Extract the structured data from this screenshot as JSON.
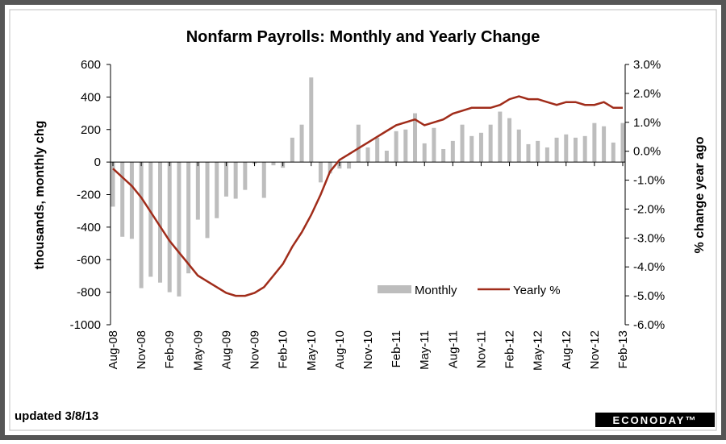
{
  "chart_data": {
    "type": "bar_line",
    "title": "Nonfarm Payrolls: Monthly and Yearly Change",
    "y_label": "thousands, monthly chg",
    "y2_label": "% change year ago",
    "note": "updated 3/8/13",
    "source": "ECONODAY™",
    "categories": [
      "Aug-08",
      null,
      null,
      "Nov-08",
      null,
      null,
      "Feb-09",
      null,
      null,
      "May-09",
      null,
      null,
      "Aug-09",
      null,
      null,
      "Nov-09",
      null,
      null,
      "Feb-10",
      null,
      null,
      "May-10",
      null,
      null,
      "Aug-10",
      null,
      null,
      "Nov-10",
      null,
      null,
      "Feb-11",
      null,
      null,
      "May-11",
      null,
      null,
      "Aug-11",
      null,
      null,
      "Nov-11",
      null,
      null,
      "Feb-12",
      null,
      null,
      "May-12",
      null,
      null,
      "Aug-12",
      null,
      null,
      "Nov-12",
      null,
      null,
      "Feb-13"
    ],
    "series": [
      {
        "name": "Monthly",
        "color": "#bdbdbd",
        "kind": "bar",
        "values": [
          -274,
          -459,
          -472,
          -775,
          -705,
          -741,
          -800,
          -826,
          -684,
          -354,
          -467,
          -345,
          -212,
          -225,
          -171,
          -10,
          -220,
          -20,
          -35,
          150,
          230,
          520,
          -125,
          -70,
          -40,
          -40,
          230,
          90,
          150,
          70,
          190,
          200,
          300,
          115,
          210,
          80,
          130,
          230,
          160,
          180,
          230,
          310,
          270,
          200,
          110,
          130,
          90,
          150,
          170,
          150,
          160,
          240,
          220,
          120,
          240
        ]
      },
      {
        "name": "Yearly %",
        "color": "#a02c1a",
        "kind": "line",
        "axis": "y2",
        "values": [
          -0.6,
          -0.9,
          -1.2,
          -1.6,
          -2.1,
          -2.6,
          -3.1,
          -3.5,
          -3.9,
          -4.3,
          -4.5,
          -4.7,
          -4.9,
          -5.0,
          -5.0,
          -4.9,
          -4.7,
          -4.3,
          -3.9,
          -3.3,
          -2.8,
          -2.2,
          -1.5,
          -0.7,
          -0.3,
          -0.1,
          0.1,
          0.3,
          0.5,
          0.7,
          0.9,
          1.0,
          1.1,
          0.9,
          1.0,
          1.1,
          1.3,
          1.4,
          1.5,
          1.5,
          1.5,
          1.6,
          1.8,
          1.9,
          1.8,
          1.8,
          1.7,
          1.6,
          1.7,
          1.7,
          1.6,
          1.6,
          1.7,
          1.5,
          1.5
        ]
      }
    ],
    "ylim": [
      -1000,
      600
    ],
    "yticks": [
      -1000,
      -800,
      -600,
      -400,
      -200,
      0,
      200,
      400,
      600
    ],
    "y2lim": [
      -6,
      3
    ],
    "y2ticks": [
      {
        "value": -6,
        "label": "-6.0%"
      },
      {
        "value": -5,
        "label": "-5.0%"
      },
      {
        "value": -4,
        "label": "-4.0%"
      },
      {
        "value": -3,
        "label": "-3.0%"
      },
      {
        "value": -2,
        "label": "-2.0%"
      },
      {
        "value": -1,
        "label": "-1.0%"
      },
      {
        "value": 0,
        "label": "0.0%"
      },
      {
        "value": 1,
        "label": "1.0%"
      },
      {
        "value": 2,
        "label": "2.0%"
      },
      {
        "value": 3,
        "label": "3.0%"
      }
    ],
    "grid": false
  }
}
